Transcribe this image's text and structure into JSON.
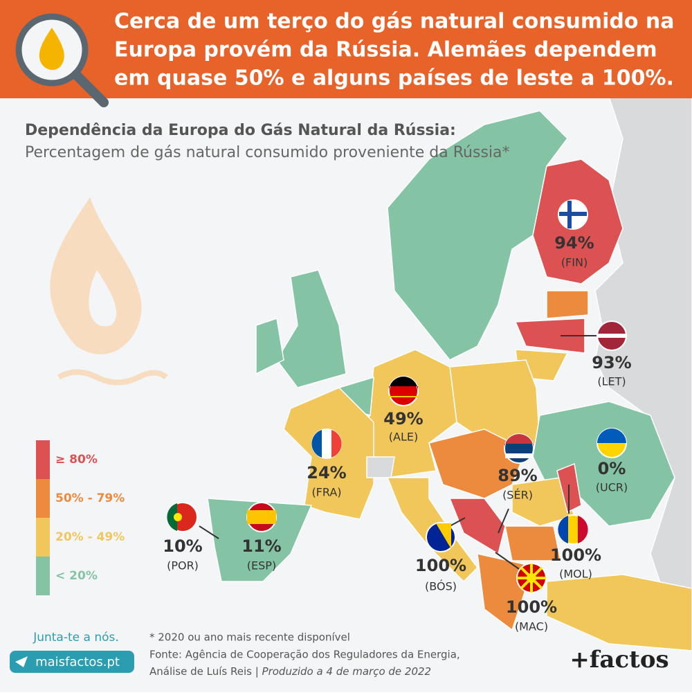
{
  "header": {
    "title_lines": [
      "Cerca de um terço do gás natural consumido na",
      "Europa provém da Rússia. Alemães dependem",
      "em quase 50% e alguns países de leste a 100%."
    ]
  },
  "subtitle": {
    "title": "Dependência da Europa do Gás Natural da Rússia:",
    "description": "Percentagem de gás natural consumido proveniente da Rússia*"
  },
  "legend": {
    "items": [
      {
        "label": "≥ 80%",
        "color": "#dc5253"
      },
      {
        "label": "50% - 79%",
        "color": "#ec8a3d"
      },
      {
        "label": "20% - 49%",
        "color": "#f1c75b"
      },
      {
        "label": "< 20%",
        "color": "#84c4a4"
      }
    ]
  },
  "countries": [
    {
      "value": "94%",
      "code": "(FIN)"
    },
    {
      "value": "93%",
      "code": "(LET)"
    },
    {
      "value": "49%",
      "code": "(ALE)"
    },
    {
      "value": "24%",
      "code": "(FRA)"
    },
    {
      "value": "89%",
      "code": "(SÉR)"
    },
    {
      "value": "0%",
      "code": "(UCR)"
    },
    {
      "value": "10%",
      "code": "(POR)"
    },
    {
      "value": "11%",
      "code": "(ESP)"
    },
    {
      "value": "100%",
      "code": "(BÓS)"
    },
    {
      "value": "100%",
      "code": "(MOL)"
    },
    {
      "value": "100%",
      "code": "(MAC)"
    }
  ],
  "cta": {
    "text": "Junta-te a nós.",
    "button": "maisfactos.pt"
  },
  "footer": {
    "note": "* 2020 ou ano mais recente disponível",
    "source": "Fonte: Agência de Cooperação dos Reguladores da Energia,",
    "author": "Análise de Luís Reis | ",
    "date": "Produzido a 4 de março de 2022"
  },
  "logo": "+factos"
}
